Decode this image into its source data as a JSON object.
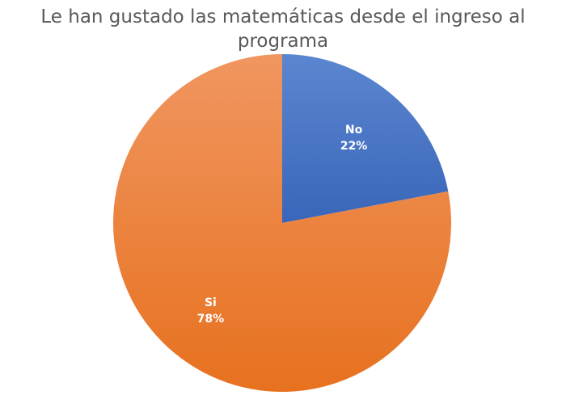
{
  "chart_data": {
    "type": "pie",
    "title": "Le han gustado las matemáticas desde el ingreso al programa",
    "categories": [
      "No",
      "Si"
    ],
    "values": [
      22,
      78
    ],
    "percent_labels": [
      "22%",
      "78%"
    ],
    "colors": [
      "#4472C4",
      "#ED7D31"
    ],
    "start_angle_deg": 0,
    "direction": "clockwise",
    "legend": "none"
  }
}
